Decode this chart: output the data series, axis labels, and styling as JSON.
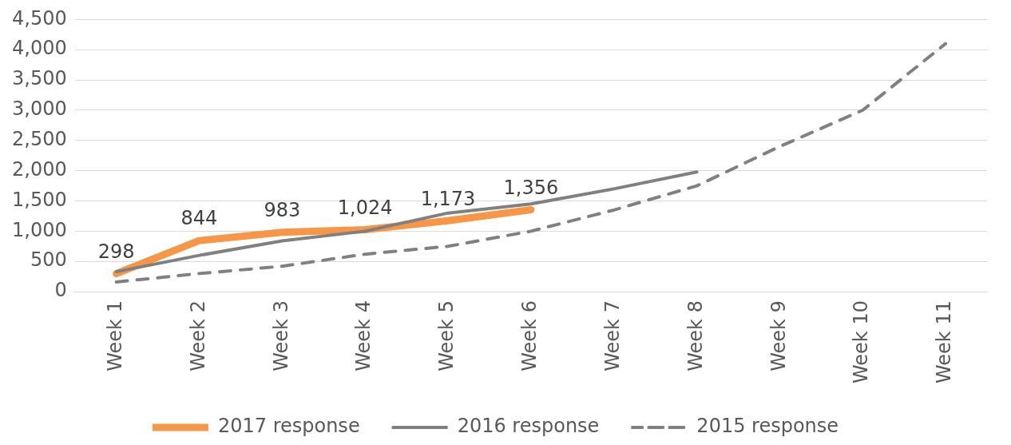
{
  "chart_data": {
    "type": "line",
    "categories": [
      "Week 1",
      "Week 2",
      "Week 3",
      "Week 4",
      "Week 5",
      "Week 6",
      "Week 7",
      "Week 8",
      "Week 9",
      "Week 10",
      "Week 11"
    ],
    "series": [
      {
        "name": "2017 response",
        "color": "#f79646",
        "values": [
          298,
          844,
          983,
          1024,
          1173,
          1356,
          null,
          null,
          null,
          null,
          null
        ],
        "value_labels": [
          "298",
          "844",
          "983",
          "1,024",
          "1,173",
          "1,356",
          null,
          null,
          null,
          null,
          null
        ],
        "line_style": "solid"
      },
      {
        "name": "2016 response",
        "color": "#808080",
        "values": [
          330,
          600,
          840,
          1000,
          1300,
          1450,
          1700,
          1980,
          null,
          null,
          null
        ],
        "line_style": "solid"
      },
      {
        "name": "2015 response",
        "color": "#808080",
        "values": [
          160,
          300,
          420,
          620,
          750,
          1000,
          1350,
          1750,
          2400,
          3000,
          4100
        ],
        "line_style": "dashed"
      }
    ],
    "ylim": [
      0,
      4500
    ],
    "yticks": [
      0,
      500,
      {
        "value": 1000,
        "label": "1,000"
      },
      {
        "value": 1500,
        "label": "1,500"
      },
      {
        "value": 2000,
        "label": "2,000"
      },
      {
        "value": 2500,
        "label": "2,500"
      },
      {
        "value": 3000,
        "label": "3,000"
      },
      {
        "value": 3500,
        "label": "3,500"
      },
      {
        "value": 4000,
        "label": "4,000"
      },
      {
        "value": 4500,
        "label": "4,500"
      }
    ],
    "grid": "y",
    "legend": "bottom",
    "marker": "none"
  }
}
